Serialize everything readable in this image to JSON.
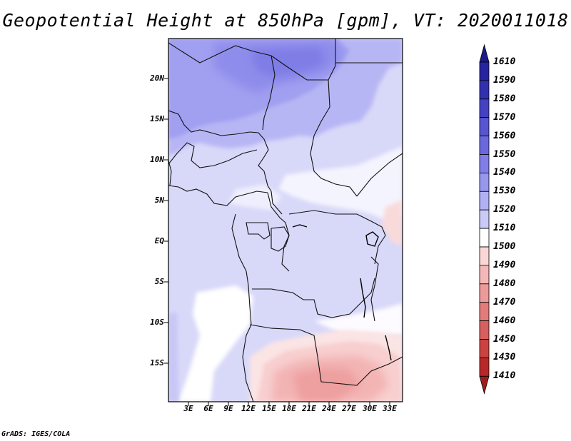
{
  "title": "Geopotential Height at 850hPa [gpm], VT: 2020011018",
  "map": {
    "region": "Central and Southern Africa",
    "latitude_labels": [
      "20N",
      "15N",
      "10N",
      "5N",
      "EQ",
      "5S",
      "10S",
      "15S"
    ],
    "longitude_labels": [
      "3E",
      "6E",
      "9E",
      "12E",
      "15E",
      "18E",
      "21E",
      "24E",
      "27E",
      "30E",
      "33E"
    ],
    "field": "850 hPa geopotential height",
    "units": "gpm"
  },
  "colorbar": {
    "labels": [
      "1610",
      "1590",
      "1580",
      "1570",
      "1560",
      "1550",
      "1540",
      "1530",
      "1520",
      "1510",
      "1500",
      "1490",
      "1480",
      "1470",
      "1460",
      "1450",
      "1430",
      "1410"
    ],
    "colors": [
      "#1c1a8c",
      "#26249e",
      "#3330b0",
      "#4441c2",
      "#5755d0",
      "#6a68dc",
      "#807ee6",
      "#9897ee",
      "#b1b0f4",
      "#cacaf8",
      "#ffffff",
      "#fad6d6",
      "#f4b8b8",
      "#ec9a9a",
      "#e27c7c",
      "#d75f5f",
      "#cb4242",
      "#b72828",
      "#a01c1c"
    ]
  },
  "credit": "GrADS: IGES/COLA"
}
